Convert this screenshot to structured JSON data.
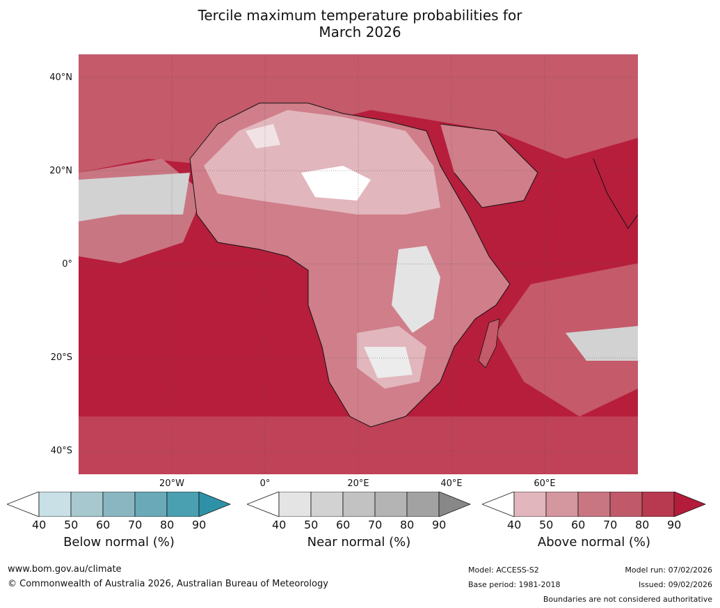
{
  "title_line1": "Tercile maximum temperature probabilities for",
  "title_line2": "March 2026",
  "lat_labels": [
    "40°N",
    "20°N",
    "0°",
    "20°S",
    "40°S"
  ],
  "lon_labels": [
    "20°W",
    "0°",
    "20°E",
    "40°E",
    "60°E"
  ],
  "colorbars": [
    {
      "title": "Below normal (%)",
      "ticks": [
        "40",
        "50",
        "60",
        "70",
        "80",
        "90"
      ],
      "colors": [
        "#ffffff",
        "#c8e0e6",
        "#a8c8cf",
        "#8ab6c1",
        "#6aaab8",
        "#4aa0b0",
        "#2f91a7"
      ]
    },
    {
      "title": "Near normal (%)",
      "ticks": [
        "40",
        "50",
        "60",
        "70",
        "80",
        "90"
      ],
      "colors": [
        "#ffffff",
        "#e4e4e4",
        "#d2d2d2",
        "#c2c2c2",
        "#b4b4b4",
        "#a2a2a2",
        "#888888"
      ]
    },
    {
      "title": "Above normal (%)",
      "ticks": [
        "40",
        "50",
        "60",
        "70",
        "80",
        "90"
      ],
      "colors": [
        "#ffffff",
        "#e2b6bd",
        "#d4969f",
        "#c97683",
        "#c05a6a",
        "#b83a50",
        "#b31d3b"
      ]
    }
  ],
  "footer": {
    "website": "www.bom.gov.au/climate",
    "copyright": "© Commonwealth of Australia 2026, Australian Bureau of Meteorology",
    "model": "Model: ACCESS-S2",
    "base_period": "Base period: 1981-2018",
    "model_run": "Model run: 07/02/2026",
    "issued": "Issued: 09/02/2026",
    "disclaimer": "Boundaries are not considered authoritative"
  }
}
